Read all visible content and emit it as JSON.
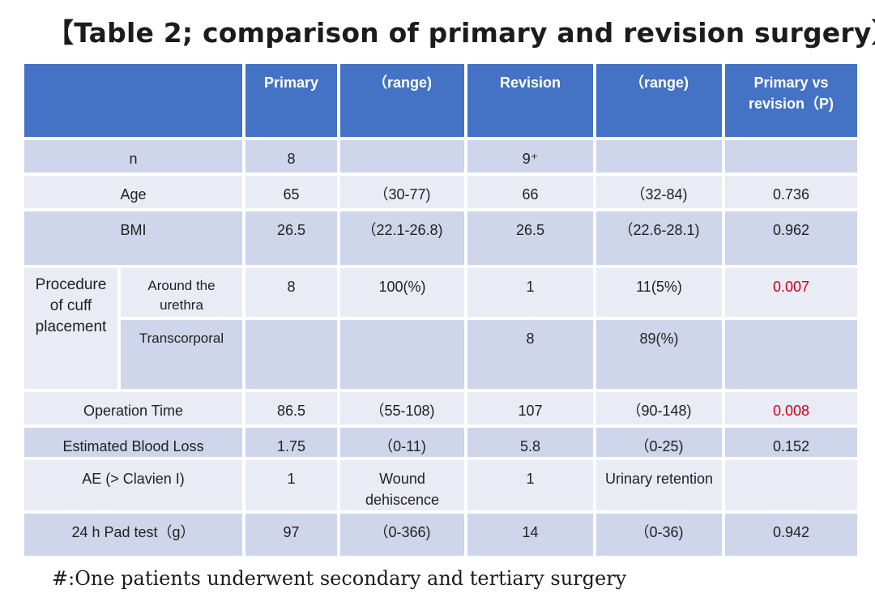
{
  "title": "【Table 2; comparison of primary and revision surgery】",
  "header": {
    "blank": "",
    "primary": "Primary",
    "range1": "（range)",
    "revision": "Revision",
    "range2": "（range)",
    "pvalue": "Primary vs revision（P)"
  },
  "rows": {
    "n": {
      "label": "n",
      "primary": "8",
      "range1": "",
      "revision": "9⁺",
      "range2": "",
      "p": ""
    },
    "age": {
      "label": "Age",
      "primary": "65",
      "range1": "（30-77)",
      "revision": "66",
      "range2": "（32-84)",
      "p": "0.736"
    },
    "bmi": {
      "label": "BMI",
      "primary": "26.5",
      "range1": "（22.1-26.8)",
      "revision": "26.5",
      "range2": "（22.6-28.1)",
      "p": "0.962"
    },
    "procedure": {
      "label": "Procedure of cuff placement",
      "urethra": {
        "label": "Around the urethra",
        "primary": "8",
        "range1": "100(%)",
        "revision": "1",
        "range2": "11(5%)",
        "p": "0.007"
      },
      "transcorporal": {
        "label": "Transcorporal",
        "primary": "",
        "range1": "",
        "revision": "8",
        "range2": "89(%)",
        "p": ""
      }
    },
    "optime": {
      "label": "Operation Time",
      "primary": "86.5",
      "range1": "（55-108)",
      "revision": "107",
      "range2": "（90-148)",
      "p": "0.008"
    },
    "ebl": {
      "label": "Estimated Blood Loss",
      "primary": "1.75",
      "range1": "（0-11)",
      "revision": "5.8",
      "range2": "（0-25)",
      "p": "0.152"
    },
    "ae": {
      "label": "AE (> Clavien I)",
      "primary": "1",
      "range1": "Wound dehiscence",
      "revision": "1",
      "range2": "Urinary retention",
      "p": ""
    },
    "pad": {
      "label": "24 h Pad test（g）",
      "primary": "97",
      "range1": "（0-366)",
      "revision": "14",
      "range2": "（0-36)",
      "p": "0.942"
    }
  },
  "footnote": "#:One patients underwent secondary and tertiary surgery",
  "colors": {
    "header": "#4472c4",
    "row_dark": "#cfd5ea",
    "row_light": "#e9ebf5",
    "significant": "#d0021b"
  }
}
